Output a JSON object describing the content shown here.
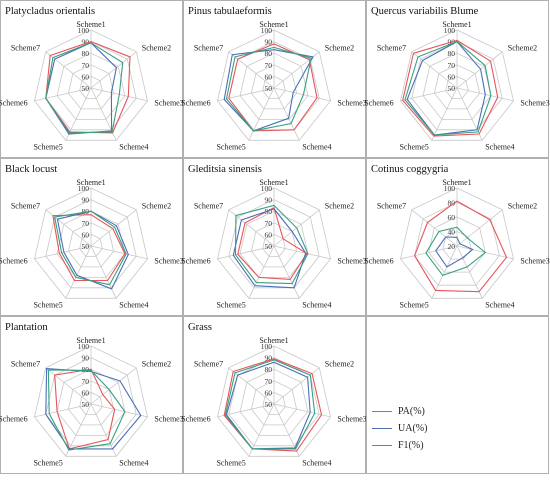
{
  "figure": {
    "axes": [
      "Scheme1",
      "Scheme2",
      "Scheme3",
      "Scheme4",
      "Scheme5",
      "Scheme6",
      "Scheme7"
    ],
    "series_styles": [
      {
        "key": "PA",
        "label": "PA(%)",
        "color": "#e8545a"
      },
      {
        "key": "UA",
        "label": "UA(%)",
        "color": "#4a6fb5"
      },
      {
        "key": "F1",
        "label": "F1(%)",
        "color": "#36a07f"
      }
    ],
    "gridline_color": "#c8c8c8",
    "border_color": "#b0b0b0"
  },
  "chart_data": [
    {
      "type": "radar",
      "title": "Platycladus orientalis",
      "categories": [
        "Scheme1",
        "Scheme2",
        "Scheme3",
        "Scheme4",
        "Scheme5",
        "Scheme6",
        "Scheme7"
      ],
      "rlim": [
        50,
        100
      ],
      "ticks": [
        50,
        60,
        70,
        80,
        90,
        100
      ],
      "series": [
        {
          "name": "PA(%)",
          "values": [
            90,
            93,
            83,
            93,
            92,
            90,
            95
          ]
        },
        {
          "name": "UA(%)",
          "values": [
            89,
            78,
            68,
            91,
            94,
            90,
            90
          ]
        },
        {
          "name": "F1(%)",
          "values": [
            89,
            85,
            75,
            92,
            93,
            90,
            92
          ]
        }
      ]
    },
    {
      "type": "radar",
      "title": "Pinus tabulaeformis",
      "categories": [
        "Scheme1",
        "Scheme2",
        "Scheme3",
        "Scheme4",
        "Scheme5",
        "Scheme6",
        "Scheme7"
      ],
      "rlim": [
        50,
        100
      ],
      "ticks": [
        50,
        60,
        70,
        80,
        90,
        100
      ],
      "series": [
        {
          "name": "PA(%)",
          "values": [
            88,
            89,
            88,
            90,
            91,
            90,
            90
          ]
        },
        {
          "name": "UA(%)",
          "values": [
            83,
            93,
            67,
            79,
            91,
            94,
            96
          ]
        },
        {
          "name": "F1(%)",
          "values": [
            85,
            91,
            76,
            84,
            91,
            92,
            93
          ]
        }
      ]
    },
    {
      "type": "radar",
      "title": "Quercus variabilis Blume",
      "categories": [
        "Scheme1",
        "Scheme2",
        "Scheme3",
        "Scheme4",
        "Scheme5",
        "Scheme6",
        "Scheme7"
      ],
      "rlim": [
        50,
        100
      ],
      "ticks": [
        50,
        60,
        70,
        80,
        90,
        100
      ],
      "series": [
        {
          "name": "PA(%)",
          "values": [
            91,
            87,
            86,
            94,
            96,
            98,
            98
          ]
        },
        {
          "name": "UA(%)",
          "values": [
            90,
            76,
            75,
            90,
            95,
            94,
            88
          ]
        },
        {
          "name": "F1(%)",
          "values": [
            90,
            81,
            80,
            92,
            95,
            96,
            93
          ]
        }
      ]
    },
    {
      "type": "radar",
      "title": "Black locust",
      "categories": [
        "Scheme1",
        "Scheme2",
        "Scheme3",
        "Scheme4",
        "Scheme5",
        "Scheme6",
        "Scheme7"
      ],
      "rlim": [
        50,
        100
      ],
      "ticks": [
        50,
        60,
        70,
        80,
        90,
        100
      ],
      "series": [
        {
          "name": "PA(%)",
          "values": [
            77,
            74,
            80,
            83,
            83,
            78,
            92
          ]
        },
        {
          "name": "UA(%)",
          "values": [
            80,
            78,
            83,
            91,
            78,
            74,
            87
          ]
        },
        {
          "name": "F1(%)",
          "values": [
            80,
            76,
            81,
            87,
            80,
            76,
            90
          ]
        }
      ]
    },
    {
      "type": "radar",
      "title": "Gleditsia sinensis",
      "categories": [
        "Scheme1",
        "Scheme2",
        "Scheme3",
        "Scheme4",
        "Scheme5",
        "Scheme6",
        "Scheme7"
      ],
      "rlim": [
        50,
        100
      ],
      "ticks": [
        50,
        60,
        70,
        80,
        90,
        100
      ],
      "series": [
        {
          "name": "PA(%)",
          "values": [
            83,
            60,
            79,
            82,
            80,
            82,
            82
          ]
        },
        {
          "name": "UA(%)",
          "values": [
            82,
            70,
            78,
            90,
            88,
            86,
            86
          ]
        },
        {
          "name": "F1(%)",
          "values": [
            85,
            75,
            80,
            86,
            85,
            84,
            92
          ]
        }
      ]
    },
    {
      "type": "radar",
      "title": "Cotinus coggygria",
      "categories": [
        "Scheme1",
        "Scheme2",
        "Scheme3",
        "Scheme4",
        "Scheme5",
        "Scheme6",
        "Scheme7"
      ],
      "rlim": [
        20,
        100
      ],
      "ticks": [
        20,
        40,
        60,
        80,
        100
      ],
      "series": [
        {
          "name": "PA(%)",
          "values": [
            82,
            78,
            90,
            90,
            88,
            80,
            72
          ]
        },
        {
          "name": "UA(%)",
          "values": [
            32,
            25,
            42,
            38,
            52,
            50,
            40
          ]
        },
        {
          "name": "F1(%)",
          "values": [
            46,
            38,
            60,
            52,
            65,
            64,
            52
          ]
        }
      ]
    },
    {
      "type": "radar",
      "title": "Plantation",
      "categories": [
        "Scheme1",
        "Scheme2",
        "Scheme3",
        "Scheme4",
        "Scheme5",
        "Scheme6",
        "Scheme7"
      ],
      "rlim": [
        50,
        100
      ],
      "ticks": [
        50,
        60,
        70,
        80,
        90,
        100
      ],
      "series": [
        {
          "name": "PA(%)",
          "values": [
            80,
            63,
            71,
            84,
            93,
            80,
            90
          ]
        },
        {
          "name": "UA(%)",
          "values": [
            78,
            82,
            94,
            93,
            93,
            90,
            99
          ]
        },
        {
          "name": "F1(%)",
          "values": [
            79,
            70,
            80,
            88,
            94,
            87,
            97
          ]
        }
      ]
    },
    {
      "type": "radar",
      "title": "Grass",
      "categories": [
        "Scheme1",
        "Scheme2",
        "Scheme3",
        "Scheme4",
        "Scheme5",
        "Scheme6",
        "Scheme7"
      ],
      "rlim": [
        50,
        100
      ],
      "ticks": [
        50,
        60,
        70,
        80,
        90,
        100
      ],
      "series": [
        {
          "name": "PA(%)",
          "values": [
            89,
            92,
            92,
            95,
            93,
            94,
            95
          ]
        },
        {
          "name": "UA(%)",
          "values": [
            86,
            87,
            82,
            92,
            93,
            92,
            90
          ]
        },
        {
          "name": "F1(%)",
          "values": [
            88,
            90,
            86,
            93,
            93,
            93,
            93
          ]
        }
      ]
    }
  ],
  "legend": {
    "items": [
      {
        "label": "PA(%)",
        "color": "#e8545a"
      },
      {
        "label": "UA(%)",
        "color": "#4a6fb5"
      },
      {
        "label": "F1(%)",
        "color": "#36a07f"
      }
    ]
  }
}
